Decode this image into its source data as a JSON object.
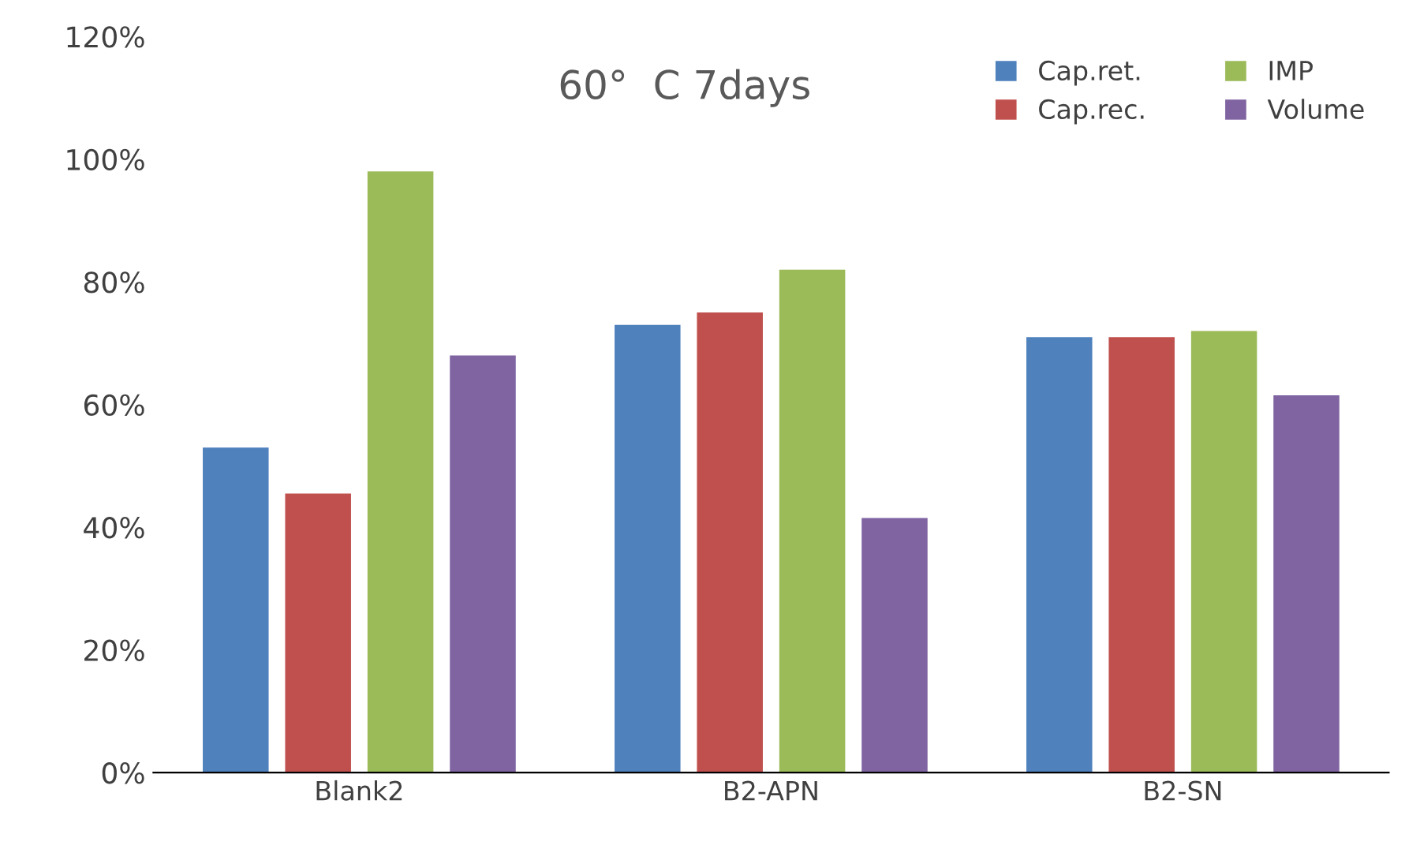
{
  "chart_data": {
    "type": "bar",
    "title": "60°  C 7days",
    "categories": [
      "Blank2",
      "B2-APN",
      "B2-SN"
    ],
    "series": [
      {
        "name": "Cap.ret.",
        "color": "#4f81bd",
        "values": [
          53,
          73,
          71
        ]
      },
      {
        "name": "Cap.rec.",
        "color": "#c0504d",
        "values": [
          45.5,
          75,
          71
        ]
      },
      {
        "name": "IMP",
        "color": "#9bbb59",
        "values": [
          98,
          82,
          72
        ]
      },
      {
        "name": "Volume",
        "color": "#8064a2",
        "values": [
          68,
          41.5,
          61.5
        ]
      }
    ],
    "ylim": [
      0,
      120
    ],
    "yticks": [
      {
        "value": 0,
        "label": "0%"
      },
      {
        "value": 20,
        "label": "20%"
      },
      {
        "value": 40,
        "label": "40%"
      },
      {
        "value": 60,
        "label": "60%"
      },
      {
        "value": 80,
        "label": "80%"
      },
      {
        "value": 100,
        "label": "100%"
      },
      {
        "value": 120,
        "label": "120%"
      }
    ],
    "grid": false,
    "legend": "top right"
  }
}
